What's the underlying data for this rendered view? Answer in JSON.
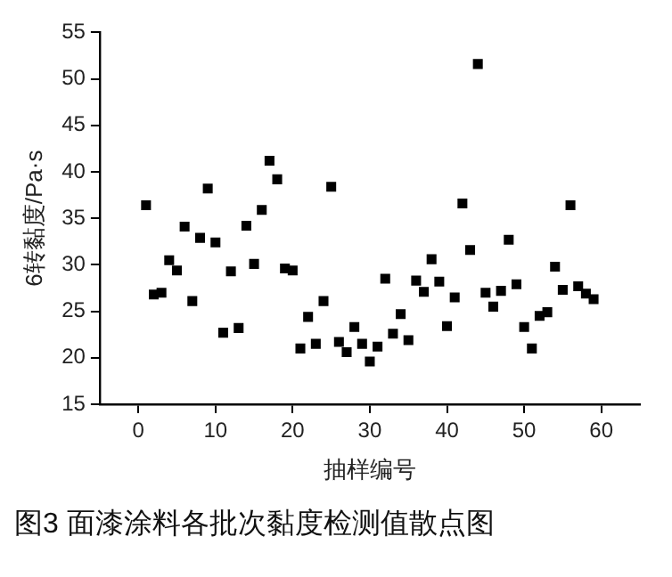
{
  "chart_data": {
    "type": "scatter",
    "xlabel": "抽样编号",
    "ylabel": "6转黏度/Pa·s",
    "annotations": [
      "图3 面漆涂料各批次黏度检测值散点图"
    ],
    "x": [
      1,
      2,
      3,
      4,
      5,
      6,
      7,
      8,
      9,
      10,
      11,
      12,
      13,
      14,
      15,
      16,
      17,
      18,
      19,
      20,
      21,
      22,
      23,
      24,
      25,
      26,
      27,
      28,
      29,
      30,
      31,
      32,
      33,
      34,
      35,
      36,
      37,
      38,
      39,
      40,
      41,
      42,
      43,
      44,
      45,
      46,
      47,
      48,
      49,
      50,
      51,
      52,
      53,
      54,
      55,
      56,
      57,
      58,
      59
    ],
    "series": [
      {
        "color": "#000000",
        "values": [
          36.4,
          26.8,
          27.0,
          30.5,
          29.4,
          34.1,
          26.1,
          32.9,
          38.2,
          32.4,
          22.7,
          29.3,
          23.2,
          34.2,
          30.1,
          35.9,
          41.2,
          39.2,
          29.6,
          29.4,
          21.0,
          24.4,
          21.5,
          26.1,
          38.4,
          21.7,
          20.6,
          23.3,
          21.5,
          19.6,
          21.2,
          28.5,
          22.6,
          24.7,
          21.9,
          28.3,
          27.1,
          30.6,
          28.2,
          23.4,
          26.5,
          36.6,
          31.6,
          51.6,
          27.0,
          25.5,
          27.2,
          32.7,
          27.9,
          23.3,
          21.0,
          24.5,
          24.9,
          29.8,
          27.3,
          36.4,
          27.7,
          26.9,
          26.3
        ]
      }
    ],
    "xlim": [
      -5,
      65
    ],
    "xticks": [
      0,
      10,
      20,
      30,
      40,
      50,
      60
    ],
    "ylim": [
      15,
      55
    ],
    "yticks": [
      15,
      20,
      25,
      30,
      35,
      40,
      45,
      50,
      55
    ],
    "grid": false,
    "legend": false,
    "marker": "square"
  }
}
